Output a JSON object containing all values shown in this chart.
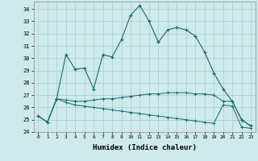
{
  "title": "",
  "xlabel": "Humidex (Indice chaleur)",
  "ylabel": "",
  "background_color": "#ceeaea",
  "grid_color": "#aacccc",
  "line_color": "#1a6b6b",
  "xlim": [
    -0.5,
    23.5
  ],
  "ylim": [
    24,
    34.6
  ],
  "yticks": [
    24,
    25,
    26,
    27,
    28,
    29,
    30,
    31,
    32,
    33,
    34
  ],
  "xticks": [
    0,
    1,
    2,
    3,
    4,
    5,
    6,
    7,
    8,
    9,
    10,
    11,
    12,
    13,
    14,
    15,
    16,
    17,
    18,
    19,
    20,
    21,
    22,
    23
  ],
  "series1": {
    "x": [
      0,
      1,
      2,
      3,
      4,
      5,
      6,
      7,
      8,
      9,
      10,
      11,
      12,
      13,
      14,
      15,
      16,
      17,
      18,
      19,
      20,
      21,
      22,
      23
    ],
    "y": [
      25.3,
      24.8,
      26.7,
      30.3,
      29.1,
      29.2,
      27.5,
      30.3,
      30.1,
      31.5,
      33.5,
      34.3,
      33.0,
      31.3,
      32.3,
      32.5,
      32.3,
      31.8,
      30.5,
      28.8,
      27.5,
      26.5,
      25.0,
      24.5
    ]
  },
  "series2": {
    "x": [
      0,
      1,
      2,
      3,
      4,
      5,
      6,
      7,
      8,
      9,
      10,
      11,
      12,
      13,
      14,
      15,
      16,
      17,
      18,
      19,
      20,
      21,
      22,
      23
    ],
    "y": [
      25.3,
      24.8,
      26.7,
      26.6,
      26.5,
      26.5,
      26.6,
      26.7,
      26.7,
      26.8,
      26.9,
      27.0,
      27.1,
      27.1,
      27.2,
      27.2,
      27.2,
      27.1,
      27.1,
      27.0,
      26.5,
      26.5,
      25.0,
      24.5
    ]
  },
  "series3": {
    "x": [
      0,
      1,
      2,
      3,
      4,
      5,
      6,
      7,
      8,
      9,
      10,
      11,
      12,
      13,
      14,
      15,
      16,
      17,
      18,
      19,
      20,
      21,
      22,
      23
    ],
    "y": [
      25.3,
      24.8,
      26.7,
      26.4,
      26.2,
      26.1,
      26.0,
      25.9,
      25.8,
      25.7,
      25.6,
      25.5,
      25.4,
      25.3,
      25.2,
      25.1,
      25.0,
      24.9,
      24.8,
      24.7,
      26.2,
      26.1,
      24.4,
      24.3
    ]
  }
}
